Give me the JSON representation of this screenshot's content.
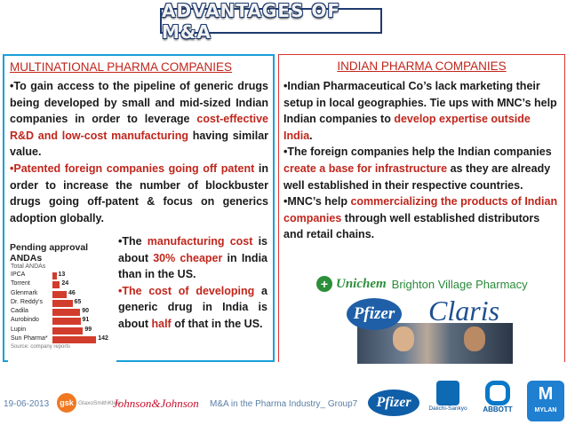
{
  "slide": {
    "title": "ADVANTAGES OF M&A",
    "left_panel": {
      "heading": "MULTINATIONAL PHARMA COMPANIES",
      "p1": [
        {
          "t": "•To gain access to the pipeline of generic drugs being developed by small and mid-sized Indian companies in order to leverage ",
          "red": false
        },
        {
          "t": "cost-effective R&D and low-cost manufacturing",
          "red": true
        },
        {
          "t": " having similar value.",
          "red": false
        }
      ],
      "p2": [
        {
          "t": "•Patented foreign companies going off patent",
          "red": true
        },
        {
          "t": " in order to increase the number of blockbuster drugs going off-patent  & focus on generics adoption globally.",
          "red": false
        }
      ],
      "p3": [
        {
          "t": "•The ",
          "red": false
        },
        {
          "t": "manufacturing cost",
          "red": true
        },
        {
          "t": " is about ",
          "red": false
        },
        {
          "t": "30% cheaper",
          "red": true
        },
        {
          "t": " in India than in the US.",
          "red": false
        }
      ],
      "p4": [
        {
          "t": "•The cost of developing",
          "red": true
        },
        {
          "t": " a generic drug in India is about ",
          "red": false
        },
        {
          "t": "half",
          "red": true
        },
        {
          "t": " of that in the US.",
          "red": false
        }
      ],
      "chart": {
        "title": "Pending approval ANDAs",
        "subtitle": "Total ANDAs",
        "legend": "Source: company reports"
      }
    },
    "right_panel": {
      "heading": "INDIAN  PHARMA COMPANIES",
      "p1": [
        {
          "t": "•Indian Pharmaceutical Co’s lack marketing their setup in local geographies. Tie ups with MNC’s help Indian companies to ",
          "red": false
        },
        {
          "t": "develop expertise outside India",
          "red": true
        },
        {
          "t": ".",
          "red": false
        }
      ],
      "p2": [
        {
          "t": "•The foreign companies help the Indian companies ",
          "red": false
        },
        {
          "t": "create a base for infrastructure",
          "red": true
        },
        {
          "t": " as they are already well established in their respective countries.",
          "red": false
        }
      ],
      "p3": [
        {
          "t": "•MNC’s help ",
          "red": false
        },
        {
          "t": "commercializing the products of Indian companies",
          "red": true
        },
        {
          "t": " through well established distributors and retail chains.",
          "red": false
        }
      ],
      "logos": {
        "unichem": "Unichem",
        "brighton": "Brighton Village Pharmacy",
        "pfizer": "Pfizer",
        "claris": "Claris"
      }
    },
    "footer": {
      "date": "19-06-2013",
      "caption": "M&A in the Pharma Industry_ Group7",
      "logos": {
        "gsk_mark": "gsk",
        "gsk_name": "GlaxoSmithKline",
        "jnj": "Johnson&Johnson",
        "pfizer": "Pfizer",
        "daiichi": "Daiichi-Sankyo",
        "abbott": "ABBOTT",
        "mylan_mark": "M",
        "mylan": "MYLAN"
      }
    }
  },
  "chart_data": {
    "type": "bar",
    "title": "Pending approval ANDAs",
    "xlabel": "Total ANDAs",
    "ylabel": "",
    "categories": [
      "IPCA",
      "Torrent",
      "Glenmark",
      "Dr. Reddy's",
      "Cadila",
      "Aurobindo",
      "Lupin",
      "Sun Pharma*"
    ],
    "values": [
      13,
      24,
      46,
      65,
      90,
      91,
      99,
      142
    ],
    "xlim": [
      0,
      150
    ]
  }
}
